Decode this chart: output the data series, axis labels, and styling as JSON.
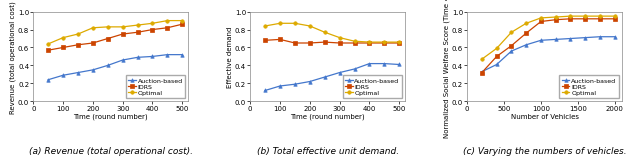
{
  "fig_width": 6.4,
  "fig_height": 1.69,
  "bg_color": "#ffffff",
  "subplot_a": {
    "title": "(a) Revenue (total operational cost).",
    "xlabel": "Time (round number)",
    "ylabel": "Revenue (total operational cost)",
    "xlim": [
      0,
      520
    ],
    "ylim": [
      0,
      1.0
    ],
    "xticks": [
      0,
      100,
      200,
      300,
      400,
      500
    ],
    "yticks": [
      0.0,
      0.2,
      0.4,
      0.6,
      0.8,
      1.0
    ],
    "series": {
      "Auction-based": {
        "x": [
          50,
          100,
          150,
          200,
          250,
          300,
          350,
          400,
          450,
          500
        ],
        "y": [
          0.24,
          0.29,
          0.32,
          0.35,
          0.4,
          0.46,
          0.49,
          0.5,
          0.52,
          0.52
        ],
        "color": "#4477cc",
        "marker": "^"
      },
      "IDRS": {
        "x": [
          50,
          100,
          150,
          200,
          250,
          300,
          350,
          400,
          450,
          500
        ],
        "y": [
          0.57,
          0.6,
          0.63,
          0.65,
          0.7,
          0.75,
          0.77,
          0.8,
          0.82,
          0.86
        ],
        "color": "#cc4400",
        "marker": "s"
      },
      "Optimal": {
        "x": [
          50,
          100,
          150,
          200,
          250,
          300,
          350,
          400,
          450,
          500
        ],
        "y": [
          0.64,
          0.71,
          0.75,
          0.82,
          0.83,
          0.83,
          0.85,
          0.87,
          0.9,
          0.9
        ],
        "color": "#ddaa00",
        "marker": "o"
      }
    },
    "legend_loc": "lower right"
  },
  "subplot_b": {
    "title": "(b) Total effective unit demand.",
    "xlabel": "Time (round number)",
    "ylabel": "Effective demand",
    "xlim": [
      0,
      520
    ],
    "ylim": [
      0,
      1.0
    ],
    "xticks": [
      0,
      100,
      200,
      300,
      400,
      500
    ],
    "yticks": [
      0.0,
      0.2,
      0.4,
      0.6,
      0.8,
      1.0
    ],
    "series": {
      "Auction-based": {
        "x": [
          50,
          100,
          150,
          200,
          250,
          300,
          350,
          400,
          450,
          500
        ],
        "y": [
          0.12,
          0.17,
          0.19,
          0.22,
          0.27,
          0.32,
          0.36,
          0.42,
          0.42,
          0.41
        ],
        "color": "#4477cc",
        "marker": "^"
      },
      "IDRS": {
        "x": [
          50,
          100,
          150,
          200,
          250,
          300,
          350,
          400,
          450,
          500
        ],
        "y": [
          0.68,
          0.69,
          0.65,
          0.65,
          0.66,
          0.65,
          0.65,
          0.65,
          0.65,
          0.65
        ],
        "color": "#cc4400",
        "marker": "s"
      },
      "Optimal": {
        "x": [
          50,
          100,
          150,
          200,
          250,
          300,
          350,
          400,
          450,
          500
        ],
        "y": [
          0.84,
          0.87,
          0.87,
          0.84,
          0.77,
          0.71,
          0.67,
          0.66,
          0.66,
          0.66
        ],
        "color": "#ddaa00",
        "marker": "o"
      }
    },
    "legend_loc": "lower right"
  },
  "subplot_c": {
    "title": "(c) Varying the numbers of vehicles.",
    "xlabel": "Number of Vehicles",
    "ylabel": "Normalized Social Welfare Score (Time = 500)",
    "xlim": [
      0,
      2100
    ],
    "ylim": [
      0,
      1.0
    ],
    "xticks": [
      0,
      500,
      1000,
      1500,
      2000
    ],
    "yticks": [
      0.0,
      0.2,
      0.4,
      0.6,
      0.8,
      1.0
    ],
    "series": {
      "Auction-based": {
        "x": [
          200,
          400,
          600,
          800,
          1000,
          1200,
          1400,
          1600,
          1800,
          2000
        ],
        "y": [
          0.33,
          0.41,
          0.56,
          0.63,
          0.68,
          0.69,
          0.7,
          0.71,
          0.72,
          0.72
        ],
        "color": "#4477cc",
        "marker": "^"
      },
      "IDRS": {
        "x": [
          200,
          400,
          600,
          800,
          1000,
          1200,
          1400,
          1600,
          1800,
          2000
        ],
        "y": [
          0.32,
          0.5,
          0.62,
          0.76,
          0.89,
          0.91,
          0.92,
          0.92,
          0.92,
          0.92
        ],
        "color": "#cc4400",
        "marker": "s"
      },
      "Optimal": {
        "x": [
          200,
          400,
          600,
          800,
          1000,
          1200,
          1400,
          1600,
          1800,
          2000
        ],
        "y": [
          0.47,
          0.59,
          0.77,
          0.87,
          0.93,
          0.94,
          0.95,
          0.95,
          0.95,
          0.95
        ],
        "color": "#ddaa00",
        "marker": "o"
      }
    },
    "legend_loc": "lower right"
  },
  "caption_fontsize": 6.5,
  "tick_fontsize": 5.0,
  "label_fontsize": 5.0,
  "legend_fontsize": 4.5,
  "marker_size": 2.5,
  "line_width": 0.9
}
